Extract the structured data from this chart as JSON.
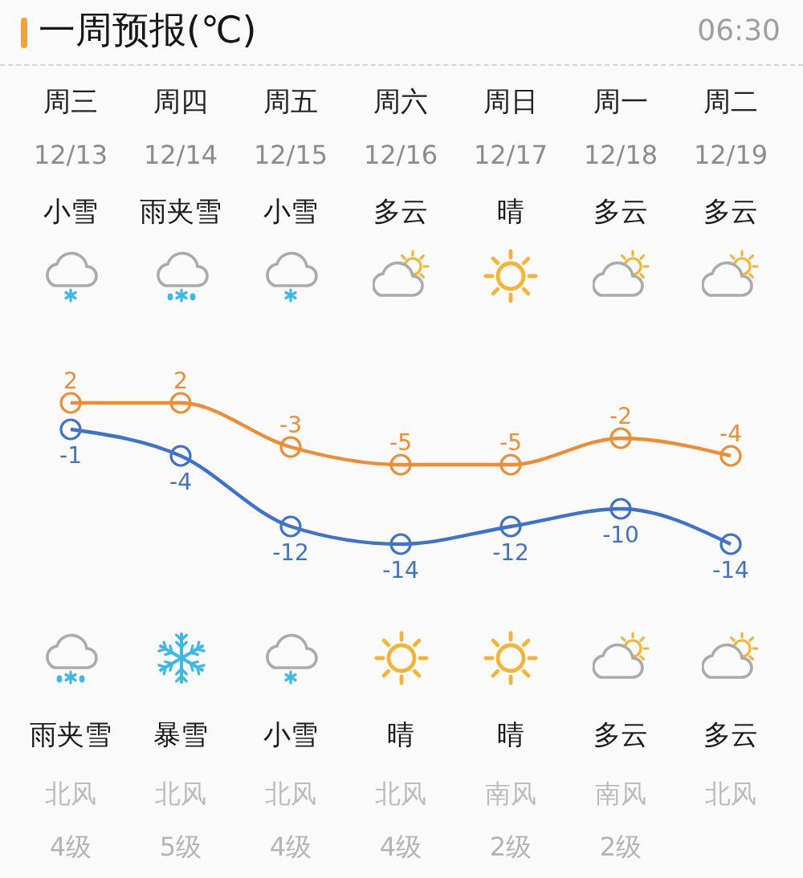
{
  "chart_data": {
    "type": "line",
    "title": "一周预报(℃)",
    "subtitle": "06:30",
    "categories": [
      "周三",
      "周四",
      "周五",
      "周六",
      "周日",
      "周一",
      "周二"
    ],
    "series": [
      {
        "color": "#ee8d33",
        "values": [
          2,
          2,
          -3,
          -5,
          -5,
          -2,
          -4
        ]
      },
      {
        "color": "#3f73c9",
        "values": [
          -1,
          -4,
          -12,
          -14,
          -12,
          -10,
          -14
        ]
      }
    ],
    "marker": "circle",
    "data_labels": true,
    "tick_labels": "x",
    "annotations": [
      "12/13",
      "12/14",
      "12/15",
      "12/16",
      "12/17",
      "12/18",
      "12/19",
      "小雪",
      "雨夹雪",
      "小雪",
      "多云",
      "晴",
      "多云",
      "多云",
      "雨夹雪",
      "暴雪",
      "小雪",
      "晴",
      "晴",
      "多云",
      "多云",
      "北风",
      "北风",
      "北风",
      "北风",
      "南风",
      "南风",
      "北风",
      "4级",
      "5级",
      "4级",
      "4级",
      "2级",
      "2级"
    ]
  }
}
